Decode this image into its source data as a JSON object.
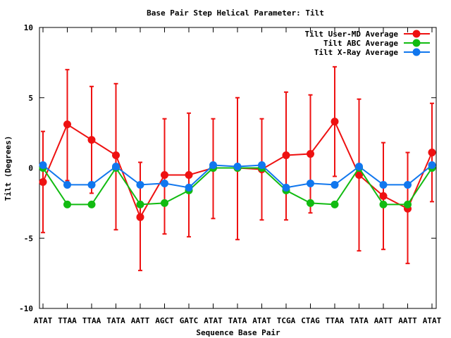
{
  "chart_data": {
    "type": "line",
    "title": "Base Pair Step Helical Parameter: Tilt",
    "xlabel": "Sequence Base Pair",
    "ylabel": "Tilt (Degrees)",
    "ylim": [
      -10,
      10
    ],
    "yticks": [
      10,
      5,
      0,
      -5,
      -10
    ],
    "grid": false,
    "legend_position": "top-right",
    "categories": [
      "ATAT",
      "TTAA",
      "TTAA",
      "TATA",
      "AATT",
      "AGCT",
      "GATC",
      "ATAT",
      "TATA",
      "ATAT",
      "TCGA",
      "CTAG",
      "TTAA",
      "TATA",
      "AATT",
      "AATT",
      "ATAT"
    ],
    "series": [
      {
        "name": "Tilt User-MD Average",
        "color": "#ee1111",
        "values": [
          -1.0,
          3.1,
          2.0,
          0.9,
          -3.5,
          -0.5,
          -0.5,
          0.0,
          0.0,
          -0.1,
          0.9,
          1.0,
          3.3,
          -0.5,
          -2.0,
          -2.9,
          1.1
        ],
        "error_low": [
          -4.6,
          -0.9,
          -1.8,
          -4.4,
          -7.3,
          -4.7,
          -4.9,
          -3.6,
          -5.1,
          -3.7,
          -3.7,
          -3.2,
          -0.6,
          -5.9,
          -5.8,
          -6.8,
          -2.4
        ],
        "error_high": [
          2.6,
          7.0,
          5.8,
          6.0,
          0.4,
          3.5,
          3.9,
          3.5,
          5.0,
          3.5,
          5.4,
          5.2,
          7.2,
          4.9,
          1.8,
          1.1,
          4.6
        ]
      },
      {
        "name": "Tilt ABC Average",
        "color": "#11bb11",
        "values": [
          0.0,
          -2.6,
          -2.6,
          0.0,
          -2.6,
          -2.5,
          -1.6,
          0.0,
          0.0,
          0.0,
          -1.6,
          -2.5,
          -2.6,
          0.0,
          -2.6,
          -2.6,
          0.0
        ]
      },
      {
        "name": "Tilt X-Ray Average",
        "color": "#1177ee",
        "values": [
          0.2,
          -1.2,
          -1.2,
          0.1,
          -1.2,
          -1.1,
          -1.4,
          0.2,
          0.1,
          0.2,
          -1.4,
          -1.1,
          -1.2,
          0.1,
          -1.2,
          -1.2,
          0.2
        ]
      }
    ]
  }
}
